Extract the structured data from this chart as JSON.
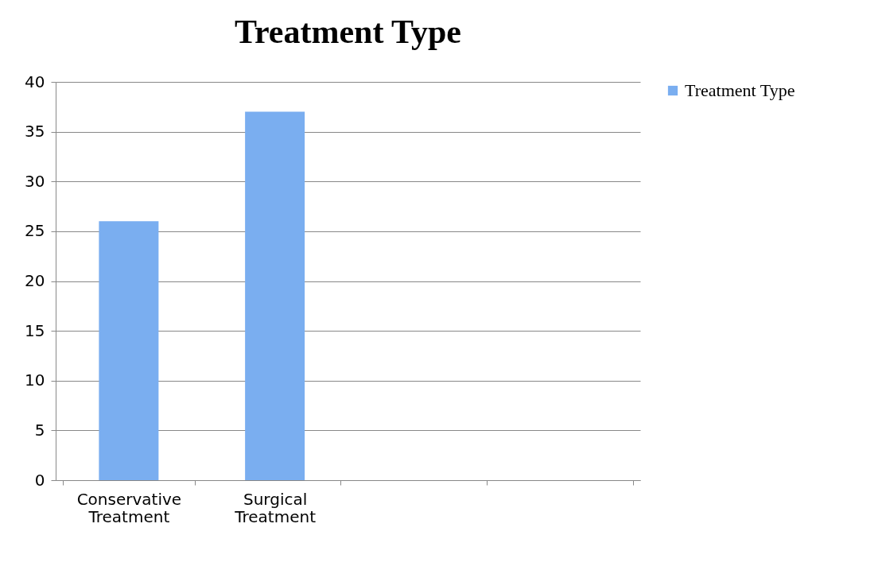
{
  "chart_data": {
    "type": "bar",
    "title": "Treatment Type",
    "categories": [
      "Conservative Treatment",
      "Surgical Treatment",
      null,
      null
    ],
    "series": [
      {
        "name": "Treatment Type",
        "color": "#7aaef0",
        "values": [
          26,
          37,
          null,
          null
        ]
      }
    ],
    "ylim": [
      0,
      40
    ],
    "yticks": [
      0,
      5,
      10,
      15,
      20,
      25,
      30,
      35,
      40
    ],
    "grid": "y",
    "legend": "right"
  }
}
